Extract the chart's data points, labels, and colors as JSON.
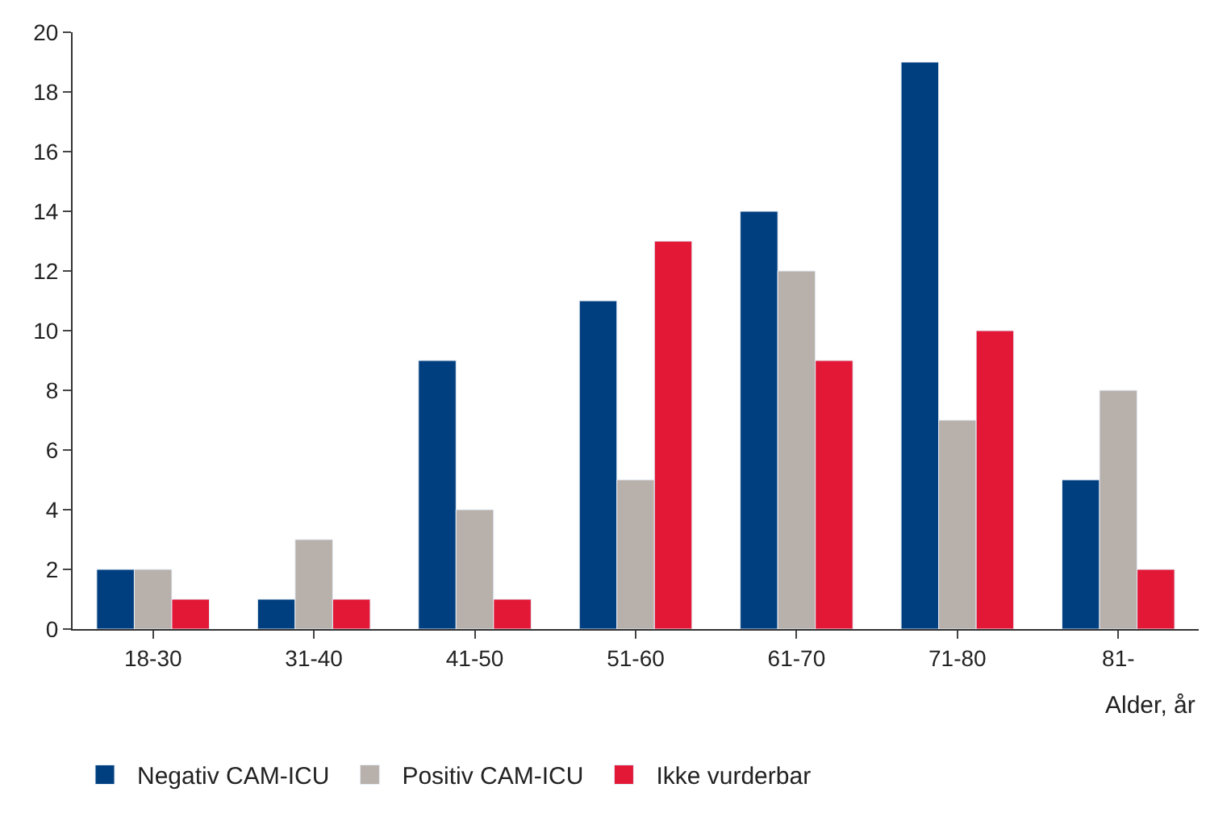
{
  "chart_data": {
    "type": "bar",
    "xlabel": "Alder, år",
    "categories": [
      "18-30",
      "31-40",
      "41-50",
      "51-60",
      "61-70",
      "71-80",
      "81-"
    ],
    "series": [
      {
        "name": "Negativ CAM-ICU",
        "color": "#003f7f",
        "values": [
          2,
          1,
          9,
          11,
          14,
          19,
          5
        ]
      },
      {
        "name": "Positiv CAM-ICU",
        "color": "#b8b0aa",
        "values": [
          2,
          3,
          4,
          5,
          12,
          7,
          8
        ]
      },
      {
        "name": "Ikke vurderbar",
        "color": "#e31837",
        "values": [
          1,
          1,
          1,
          13,
          9,
          10,
          2
        ]
      }
    ],
    "ylim": [
      0,
      20
    ],
    "yticks": [
      0,
      2,
      4,
      6,
      8,
      10,
      12,
      14,
      16,
      18,
      20
    ],
    "legend": "bottom"
  }
}
